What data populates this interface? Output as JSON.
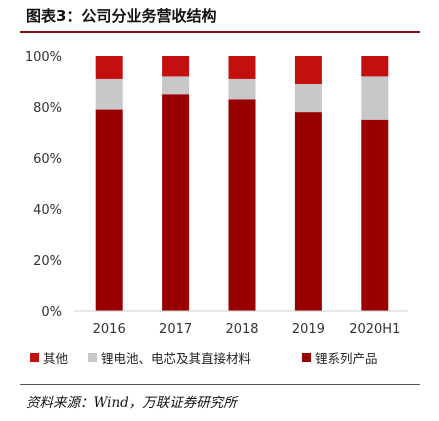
{
  "header": {
    "title": "图表3：公司分业务营收结构"
  },
  "colors": {
    "other": "#c40f0f",
    "battery": "#c8c8c8",
    "lithium": "#990000"
  },
  "chart_data": {
    "type": "bar",
    "stacked": true,
    "categories": [
      "2016",
      "2017",
      "2018",
      "2019",
      "2020H1"
    ],
    "series": [
      {
        "name": "锂系列产品",
        "values": [
          79,
          85,
          83,
          78,
          75
        ]
      },
      {
        "name": "锂电池、电芯及其直接材料",
        "values": [
          12,
          7,
          8,
          11,
          17
        ]
      },
      {
        "name": "其他",
        "values": [
          9,
          8,
          9,
          11,
          8
        ]
      }
    ],
    "ylim": [
      0,
      100
    ],
    "yticks": [
      "0%",
      "20%",
      "40%",
      "60%",
      "80%",
      "100%"
    ],
    "grid": false,
    "legend_position": "bottom"
  },
  "legend": [
    {
      "label": "其他"
    },
    {
      "label": "锂电池、电芯及其直接材料"
    },
    {
      "label": "锂系列产品"
    }
  ],
  "footer": {
    "source": "资料来源：Wind，万联证券研究所"
  }
}
